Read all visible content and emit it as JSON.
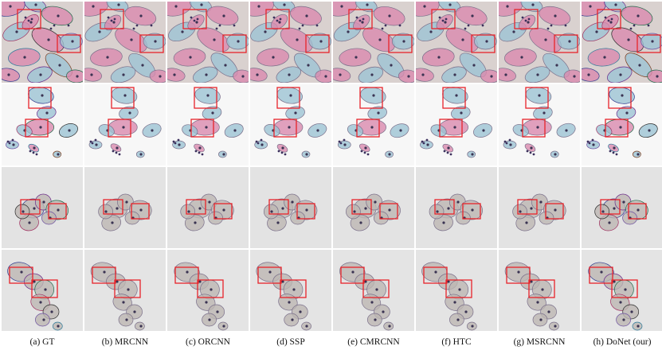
{
  "figure": {
    "columns": [
      {
        "id": "gt",
        "caption": "(a) GT"
      },
      {
        "id": "mrcnn",
        "caption": "(b) MRCNN"
      },
      {
        "id": "orcnn",
        "caption": "(c) ORCNN"
      },
      {
        "id": "ssp",
        "caption": "(d) SSP"
      },
      {
        "id": "cmrcnn",
        "caption": "(e) CMRCNN"
      },
      {
        "id": "htc",
        "caption": "(f) HTC"
      },
      {
        "id": "msrcnn",
        "caption": "(g) MSRCNN"
      },
      {
        "id": "donet",
        "caption": "(h) DoNet (our)"
      }
    ],
    "rows": [
      {
        "id": "row-1",
        "background": "#d9d1cf"
      },
      {
        "id": "row-2",
        "background": "#f7f7f7"
      },
      {
        "id": "row-3",
        "background": "#e3e3e3"
      },
      {
        "id": "row-4",
        "background": "#e4e4e4"
      }
    ],
    "colors": {
      "highlight_box": "#e8232a",
      "pink_cell": "#d989ae",
      "blue_cell": "#9cc3d3",
      "gray_cell": "#bdb6b3",
      "nucleus": "#3a3352"
    }
  }
}
